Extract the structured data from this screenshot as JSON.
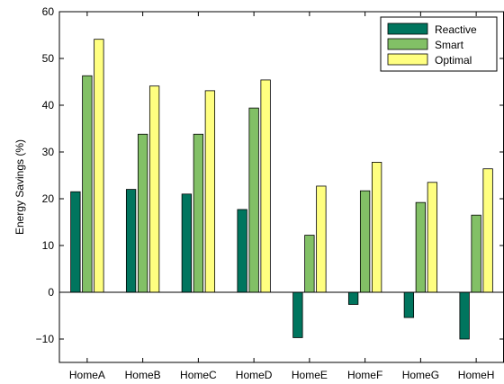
{
  "chart_data": {
    "type": "bar",
    "title": "",
    "xlabel": "",
    "ylabel": "Energy Savings (%)",
    "ylim": [
      -15,
      60
    ],
    "yticks": [
      -10,
      0,
      10,
      20,
      30,
      40,
      50,
      60
    ],
    "ytick_labels": [
      "−10",
      "0",
      "10",
      "20",
      "30",
      "40",
      "50",
      "60"
    ],
    "grid": false,
    "legend_position": "top-right",
    "categories": [
      "HomeA",
      "HomeB",
      "HomeC",
      "HomeD",
      "HomeE",
      "HomeF",
      "HomeG",
      "HomeH"
    ],
    "series": [
      {
        "name": "Reactive",
        "color": "#00755e",
        "values": [
          21.5,
          22.0,
          21.0,
          17.7,
          -9.7,
          -2.6,
          -5.4,
          -10.0
        ]
      },
      {
        "name": "Smart",
        "color": "#82c066",
        "values": [
          46.3,
          33.8,
          33.8,
          39.4,
          12.2,
          21.7,
          19.2,
          16.5
        ]
      },
      {
        "name": "Optimal",
        "color": "#ffff80",
        "values": [
          54.1,
          44.1,
          43.1,
          45.4,
          22.7,
          27.8,
          23.5,
          26.4
        ]
      }
    ]
  }
}
